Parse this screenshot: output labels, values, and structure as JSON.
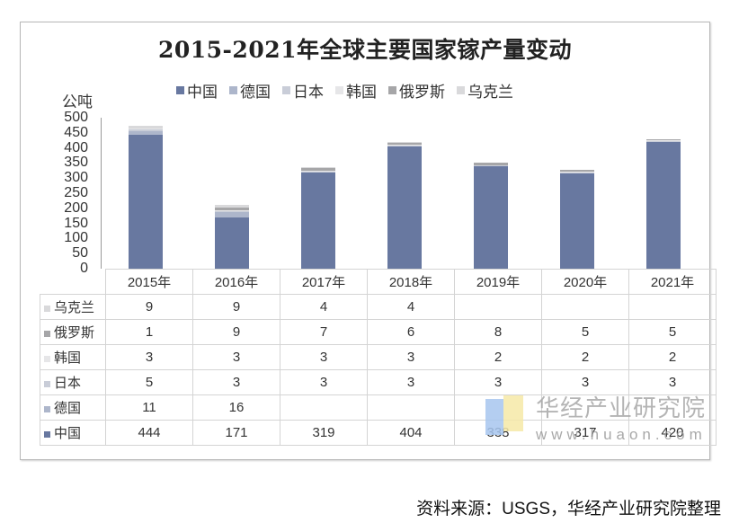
{
  "title": "2015-2021年全球主要国家镓产量变动",
  "unit": "公吨",
  "source": "资料来源：USGS，华经产业研究院整理",
  "watermark": {
    "name": "华经产业研究院",
    "url": "www.huaon.com"
  },
  "legend": [
    {
      "label": "中国",
      "color": "#6878a0"
    },
    {
      "label": "德国",
      "color": "#adb6cb"
    },
    {
      "label": "日本",
      "color": "#c9cdd8"
    },
    {
      "label": "韩国",
      "color": "#e6e6e8"
    },
    {
      "label": "俄罗斯",
      "color": "#a6a6a8"
    },
    {
      "label": "乌克兰",
      "color": "#d9d9db"
    }
  ],
  "y_ticks": [
    "500",
    "450",
    "400",
    "350",
    "300",
    "250",
    "200",
    "150",
    "100",
    "50",
    "0"
  ],
  "table": {
    "header": [
      "2015年",
      "2016年",
      "2017年",
      "2018年",
      "2019年",
      "2020年",
      "2021年"
    ],
    "rows": [
      {
        "label": "乌克兰",
        "color": "#d9d9db",
        "values": [
          "9",
          "9",
          "4",
          "4",
          "",
          "",
          ""
        ]
      },
      {
        "label": "俄罗斯",
        "color": "#a6a6a8",
        "values": [
          "1",
          "9",
          "7",
          "6",
          "8",
          "5",
          "5"
        ]
      },
      {
        "label": "韩国",
        "color": "#e6e6e8",
        "values": [
          "3",
          "3",
          "3",
          "3",
          "2",
          "2",
          "2"
        ]
      },
      {
        "label": "日本",
        "color": "#c9cdd8",
        "values": [
          "5",
          "3",
          "3",
          "3",
          "3",
          "3",
          "3"
        ]
      },
      {
        "label": "德国",
        "color": "#adb6cb",
        "values": [
          "11",
          "16",
          "",
          "",
          "",
          "",
          ""
        ]
      },
      {
        "label": "中国",
        "color": "#6878a0",
        "values": [
          "444",
          "171",
          "319",
          "404",
          "338",
          "317",
          "420"
        ]
      }
    ]
  },
  "chart_data": {
    "type": "bar",
    "stacked": true,
    "title": "2015-2021年全球主要国家镓产量变动",
    "xlabel": "",
    "ylabel": "公吨",
    "ylim": [
      0,
      500
    ],
    "y_ticks": [
      0,
      50,
      100,
      150,
      200,
      250,
      300,
      350,
      400,
      450,
      500
    ],
    "legend_position": "top",
    "grid": false,
    "categories": [
      "2015年",
      "2016年",
      "2017年",
      "2018年",
      "2019年",
      "2020年",
      "2021年"
    ],
    "series": [
      {
        "name": "中国",
        "color": "#6878a0",
        "values": [
          444,
          171,
          319,
          404,
          338,
          317,
          420
        ]
      },
      {
        "name": "德国",
        "color": "#adb6cb",
        "values": [
          11,
          16,
          null,
          null,
          null,
          null,
          null
        ]
      },
      {
        "name": "日本",
        "color": "#c9cdd8",
        "values": [
          5,
          3,
          3,
          3,
          3,
          3,
          3
        ]
      },
      {
        "name": "韩国",
        "color": "#e6e6e8",
        "values": [
          3,
          3,
          3,
          3,
          2,
          2,
          2
        ]
      },
      {
        "name": "俄罗斯",
        "color": "#a6a6a8",
        "values": [
          1,
          9,
          7,
          6,
          8,
          5,
          5
        ]
      },
      {
        "name": "乌克兰",
        "color": "#d9d9db",
        "values": [
          9,
          9,
          4,
          4,
          null,
          null,
          null
        ]
      }
    ],
    "data_table": true
  }
}
